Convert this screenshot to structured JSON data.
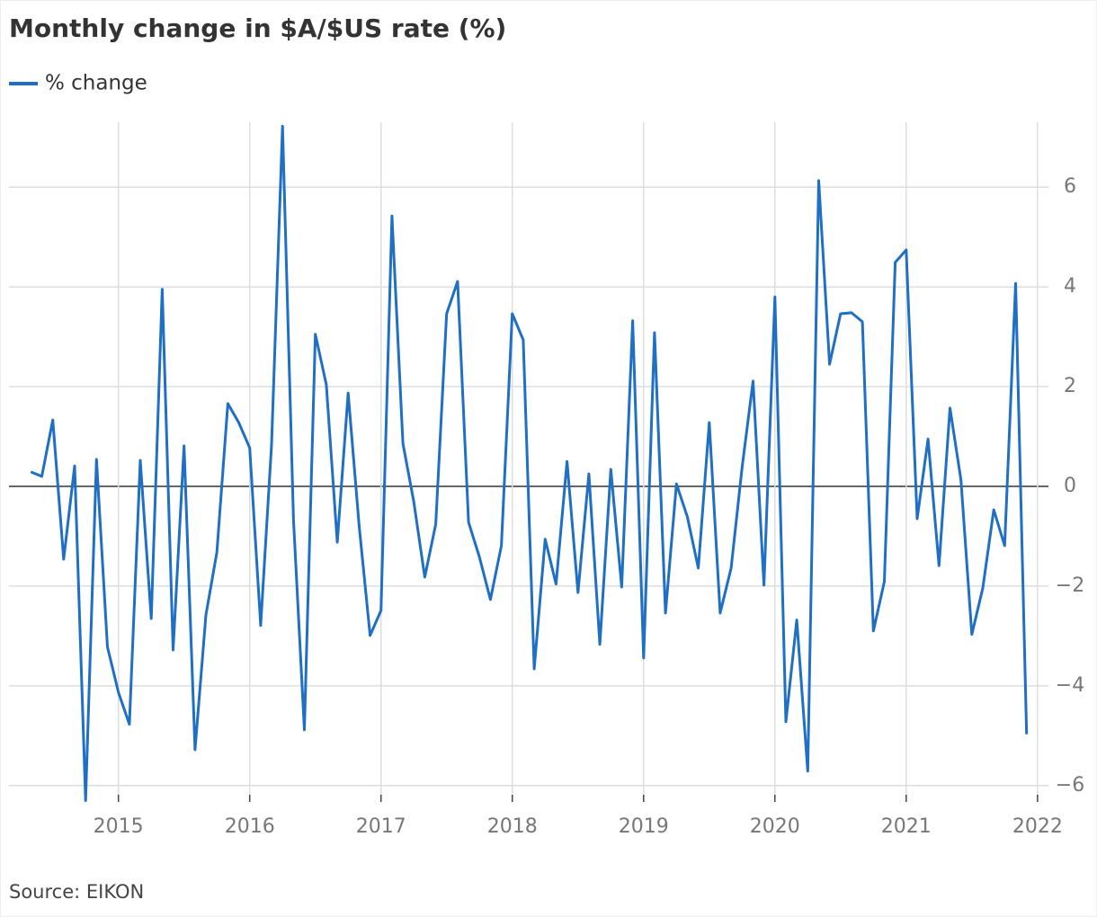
{
  "chart_data": {
    "type": "line",
    "title": "Monthly change in $A/$US rate (%)",
    "source": "Source: EIKON",
    "x": [
      "2014-05",
      "2014-06",
      "2014-07",
      "2014-08",
      "2014-09",
      "2014-10",
      "2014-11",
      "2014-12",
      "2015-01",
      "2015-02",
      "2015-03",
      "2015-04",
      "2015-05",
      "2015-06",
      "2015-07",
      "2015-08",
      "2015-09",
      "2015-10",
      "2015-11",
      "2015-12",
      "2016-01",
      "2016-02",
      "2016-03",
      "2016-04",
      "2016-05",
      "2016-06",
      "2016-07",
      "2016-08",
      "2016-09",
      "2016-10",
      "2016-11",
      "2016-12",
      "2017-01",
      "2017-02",
      "2017-03",
      "2017-04",
      "2017-05",
      "2017-06",
      "2017-07",
      "2017-08",
      "2017-09",
      "2017-10",
      "2017-11",
      "2017-12",
      "2018-01",
      "2018-02",
      "2018-03",
      "2018-04",
      "2018-05",
      "2018-06",
      "2018-07",
      "2018-08",
      "2018-09",
      "2018-10",
      "2018-11",
      "2018-12",
      "2019-01",
      "2019-02",
      "2019-03",
      "2019-04",
      "2019-05",
      "2019-06",
      "2019-07",
      "2019-08",
      "2019-09",
      "2019-10",
      "2019-11",
      "2019-12",
      "2020-01",
      "2020-02",
      "2020-03",
      "2020-04",
      "2020-05",
      "2020-06",
      "2020-07",
      "2020-08",
      "2020-09",
      "2020-10",
      "2020-11",
      "2020-12",
      "2021-01",
      "2021-02",
      "2021-03",
      "2021-04",
      "2021-05",
      "2021-06",
      "2021-07",
      "2021-08",
      "2021-09",
      "2021-10",
      "2021-11",
      "2021-12"
    ],
    "series": [
      {
        "name": "% change",
        "color": "#1f6fc5",
        "values": [
          0.29,
          0.2,
          1.33,
          -1.46,
          0.41,
          -6.3,
          0.54,
          -3.22,
          -4.13,
          -4.77,
          0.52,
          -2.65,
          3.95,
          -3.28,
          0.81,
          -5.28,
          -2.58,
          -1.32,
          1.66,
          1.28,
          0.77,
          -2.79,
          0.83,
          7.22,
          -0.67,
          -4.88,
          3.05,
          2.04,
          -1.12,
          1.87,
          -0.79,
          -2.99,
          -2.49,
          5.42,
          0.86,
          -0.31,
          -1.82,
          -0.76,
          3.46,
          4.11,
          -0.72,
          -1.42,
          -2.27,
          -1.19,
          3.46,
          2.94,
          -3.66,
          -1.06,
          -1.96,
          0.5,
          -2.13,
          0.25,
          -3.17,
          0.34,
          -2.02,
          3.32,
          -3.44,
          3.08,
          -2.54,
          0.05,
          -0.61,
          -1.64,
          1.28,
          -2.54,
          -1.64,
          0.38,
          2.11,
          -1.98,
          3.8,
          -4.72,
          -2.68,
          -5.71,
          6.13,
          2.45,
          3.46,
          3.48,
          3.3,
          -2.9,
          -1.91,
          4.49,
          4.74,
          -0.65,
          0.95,
          -1.59,
          1.57,
          0.13,
          -2.97,
          -2.04,
          -0.47,
          -1.19,
          4.07,
          -4.97
        ]
      }
    ],
    "xlim": [
      "2014-03",
      "2022-02"
    ],
    "xticks": [
      2015,
      2016,
      2017,
      2018,
      2019,
      2020,
      2021,
      2022
    ],
    "ylim": [
      -6.4,
      7.3
    ],
    "yticks": [
      {
        "value": -6,
        "label": "−6"
      },
      {
        "value": -4,
        "label": "−4"
      },
      {
        "value": -2,
        "label": "−2"
      },
      0,
      2,
      4,
      6
    ],
    "grid": true,
    "legend": "top-left"
  }
}
